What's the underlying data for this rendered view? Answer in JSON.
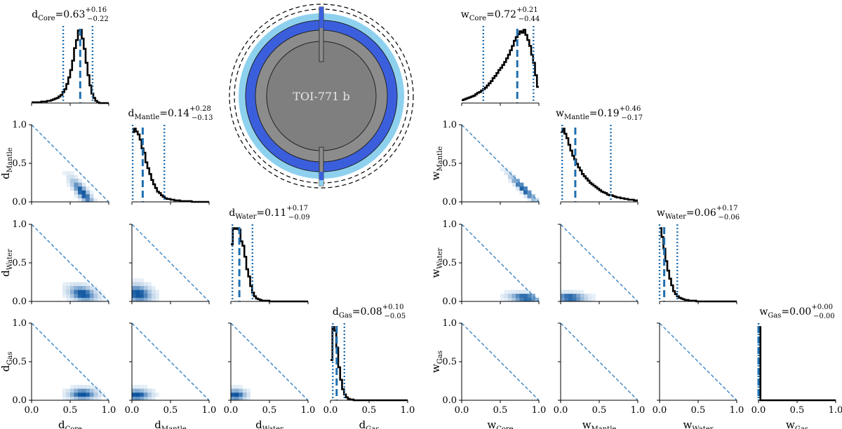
{
  "figure": {
    "planet_name": "TOI-771 b",
    "tick_labels": [
      "0.0",
      "0.5",
      "1.0"
    ],
    "colors": {
      "hist_line": "#000000",
      "median_line": "#1f6fb0",
      "ci_line": "#1f6fb0",
      "diag_line": "#3a84c4",
      "density_light": "#c6dbef",
      "density_dark": "#08519c",
      "core": "#7f7f7f",
      "mantle": "#8c8c8c",
      "water": "#3b5fdc",
      "gas": "#8ed1ee",
      "planet_text": "#e6e6e6"
    },
    "planet_layers": [
      "core",
      "mantle",
      "water",
      "gas"
    ]
  },
  "chart_data": [
    {
      "type": "corner",
      "prefix": "d",
      "variables": [
        "Core",
        "Mantle",
        "Water",
        "Gas"
      ],
      "xlim": [
        0,
        1
      ],
      "ylim": [
        0,
        1
      ],
      "stats": [
        {
          "var": "Core",
          "median": "0.63",
          "plus": "+0.16",
          "minus": "−0.22",
          "median_value": 0.63,
          "lo": 0.41,
          "hi": 0.79
        },
        {
          "var": "Mantle",
          "median": "0.14",
          "plus": "+0.28",
          "minus": "−0.13",
          "median_value": 0.14,
          "lo": 0.01,
          "hi": 0.42
        },
        {
          "var": "Water",
          "median": "0.11",
          "plus": "+0.17",
          "minus": "−0.09",
          "median_value": 0.11,
          "lo": 0.02,
          "hi": 0.28
        },
        {
          "var": "Gas",
          "median": "0.08",
          "plus": "+0.10",
          "minus": "−0.05",
          "median_value": 0.08,
          "lo": 0.03,
          "hi": 0.18
        }
      ],
      "histograms": [
        {
          "var": "Core",
          "bins": [
            0.0,
            0.025,
            0.05,
            0.075,
            0.1,
            0.125,
            0.15,
            0.175,
            0.2,
            0.225,
            0.25,
            0.275,
            0.3,
            0.325,
            0.35,
            0.375,
            0.4,
            0.425,
            0.45,
            0.475,
            0.5,
            0.525,
            0.55,
            0.575,
            0.6,
            0.625,
            0.65,
            0.675,
            0.7,
            0.725,
            0.75,
            0.775,
            0.8,
            0.825,
            0.85,
            0.875,
            0.9,
            0.925,
            0.95,
            0.975
          ],
          "counts": [
            0.01,
            0.01,
            0.01,
            0.01,
            0.01,
            0.02,
            0.02,
            0.02,
            0.03,
            0.03,
            0.04,
            0.05,
            0.06,
            0.07,
            0.09,
            0.11,
            0.15,
            0.19,
            0.26,
            0.35,
            0.45,
            0.58,
            0.75,
            0.86,
            0.99,
            1.0,
            0.88,
            0.74,
            0.55,
            0.38,
            0.24,
            0.13,
            0.07,
            0.03,
            0.01,
            0.0,
            0.0,
            0.0,
            0.0,
            0.0
          ]
        },
        {
          "var": "Mantle",
          "bins": [
            0.0,
            0.025,
            0.05,
            0.075,
            0.1,
            0.125,
            0.15,
            0.175,
            0.2,
            0.225,
            0.25,
            0.275,
            0.3,
            0.325,
            0.35,
            0.375,
            0.4,
            0.425,
            0.45,
            0.475,
            0.5,
            0.525,
            0.55,
            0.575,
            0.6,
            0.625,
            0.65,
            0.675,
            0.7,
            0.725,
            0.75,
            0.775,
            0.8,
            0.825,
            0.85,
            0.875,
            0.9,
            0.925,
            0.95,
            0.975
          ],
          "counts": [
            0.95,
            1.0,
            0.96,
            0.92,
            0.85,
            0.73,
            0.67,
            0.54,
            0.46,
            0.38,
            0.3,
            0.24,
            0.19,
            0.14,
            0.12,
            0.09,
            0.07,
            0.05,
            0.04,
            0.04,
            0.03,
            0.03,
            0.02,
            0.02,
            0.02,
            0.01,
            0.01,
            0.01,
            0.01,
            0.01,
            0.01,
            0.0,
            0.0,
            0.0,
            0.0,
            0.0,
            0.0,
            0.0,
            0.0,
            0.0
          ]
        },
        {
          "var": "Water",
          "bins": [
            0.0,
            0.025,
            0.05,
            0.075,
            0.1,
            0.125,
            0.15,
            0.175,
            0.2,
            0.225,
            0.25,
            0.275,
            0.3,
            0.325,
            0.35,
            0.375,
            0.4,
            0.425,
            0.45,
            0.475,
            0.5,
            0.525,
            0.55,
            0.575,
            0.6,
            0.625,
            0.65,
            0.675,
            0.7,
            0.725,
            0.75,
            0.775,
            0.8,
            0.825,
            0.85,
            0.875,
            0.9,
            0.925,
            0.95,
            0.975
          ],
          "counts": [
            0.78,
            1.0,
            0.99,
            1.0,
            0.98,
            0.82,
            0.76,
            0.61,
            0.44,
            0.34,
            0.21,
            0.12,
            0.07,
            0.04,
            0.03,
            0.02,
            0.01,
            0.01,
            0.01,
            0.01,
            0.0,
            0.0,
            0.0,
            0.0,
            0.0,
            0.0,
            0.0,
            0.0,
            0.0,
            0.0,
            0.0,
            0.0,
            0.0,
            0.0,
            0.0,
            0.0,
            0.0,
            0.0,
            0.0,
            0.0
          ]
        },
        {
          "var": "Gas",
          "bins": [
            0.0,
            0.025,
            0.05,
            0.075,
            0.1,
            0.125,
            0.15,
            0.175,
            0.2,
            0.225,
            0.25,
            0.275,
            0.3,
            0.325,
            0.35,
            0.375,
            0.4,
            0.425,
            0.45,
            0.475,
            0.5,
            0.525,
            0.55,
            0.575,
            0.6,
            0.625,
            0.65,
            0.675,
            0.7,
            0.725,
            0.75,
            0.775,
            0.8,
            0.825,
            0.85,
            0.875,
            0.9,
            0.925,
            0.95,
            0.975
          ],
          "counts": [
            0.55,
            1.0,
            0.95,
            0.72,
            0.45,
            0.28,
            0.15,
            0.08,
            0.04,
            0.02,
            0.01,
            0.01,
            0.0,
            0.0,
            0.0,
            0.0,
            0.0,
            0.0,
            0.0,
            0.0,
            0.0,
            0.0,
            0.0,
            0.0,
            0.0,
            0.0,
            0.0,
            0.0,
            0.0,
            0.0,
            0.0,
            0.0,
            0.0,
            0.0,
            0.0,
            0.0,
            0.0,
            0.0,
            0.0,
            0.0
          ]
        }
      ],
      "densities": [
        {
          "x": "Core",
          "y": "Mantle",
          "center": [
            0.66,
            0.12
          ],
          "spread": [
            0.1,
            0.12
          ],
          "corr": -0.85,
          "diagonal": true
        },
        {
          "x": "Core",
          "y": "Water",
          "center": [
            0.66,
            0.1
          ],
          "spread": [
            0.12,
            0.07
          ],
          "corr": -0.3,
          "diagonal": true
        },
        {
          "x": "Mantle",
          "y": "Water",
          "center": [
            0.08,
            0.1
          ],
          "spread": [
            0.12,
            0.08
          ],
          "corr": -0.2,
          "diagonal": true
        },
        {
          "x": "Core",
          "y": "Gas",
          "center": [
            0.66,
            0.08
          ],
          "spread": [
            0.12,
            0.05
          ],
          "corr": 0.0,
          "diagonal": true
        },
        {
          "x": "Mantle",
          "y": "Gas",
          "center": [
            0.06,
            0.07
          ],
          "spread": [
            0.12,
            0.05
          ],
          "corr": 0.0,
          "diagonal": true
        },
        {
          "x": "Water",
          "y": "Gas",
          "center": [
            0.06,
            0.07
          ],
          "spread": [
            0.09,
            0.05
          ],
          "corr": 0.0,
          "diagonal": true
        }
      ]
    },
    {
      "type": "corner",
      "prefix": "w",
      "variables": [
        "Core",
        "Mantle",
        "Water",
        "Gas"
      ],
      "xlim": [
        0,
        1
      ],
      "ylim": [
        0,
        1
      ],
      "stats": [
        {
          "var": "Core",
          "median": "0.72",
          "plus": "+0.21",
          "minus": "−0.44",
          "median_value": 0.72,
          "lo": 0.28,
          "hi": 0.93
        },
        {
          "var": "Mantle",
          "median": "0.19",
          "plus": "+0.46",
          "minus": "−0.17",
          "median_value": 0.19,
          "lo": 0.02,
          "hi": 0.65
        },
        {
          "var": "Water",
          "median": "0.06",
          "plus": "+0.17",
          "minus": "−0.06",
          "median_value": 0.06,
          "lo": 0.0,
          "hi": 0.23
        },
        {
          "var": "Gas",
          "median": "0.00",
          "plus": "+0.00",
          "minus": "−0.00",
          "median_value": 0.0,
          "lo": 0.0,
          "hi": 0.0
        }
      ],
      "histograms": [
        {
          "var": "Core",
          "bins": [
            0.0,
            0.025,
            0.05,
            0.075,
            0.1,
            0.125,
            0.15,
            0.175,
            0.2,
            0.225,
            0.25,
            0.275,
            0.3,
            0.325,
            0.35,
            0.375,
            0.4,
            0.425,
            0.45,
            0.475,
            0.5,
            0.525,
            0.55,
            0.575,
            0.6,
            0.625,
            0.65,
            0.675,
            0.7,
            0.725,
            0.75,
            0.775,
            0.8,
            0.825,
            0.85,
            0.875,
            0.9,
            0.925,
            0.95,
            0.975
          ],
          "counts": [
            0.04,
            0.05,
            0.06,
            0.07,
            0.08,
            0.09,
            0.1,
            0.12,
            0.14,
            0.15,
            0.17,
            0.19,
            0.21,
            0.24,
            0.27,
            0.3,
            0.34,
            0.37,
            0.41,
            0.45,
            0.48,
            0.52,
            0.56,
            0.61,
            0.66,
            0.72,
            0.78,
            0.85,
            0.9,
            0.94,
            0.98,
            0.96,
            1.0,
            0.93,
            0.86,
            0.78,
            0.66,
            0.55,
            0.38,
            0.22
          ]
        },
        {
          "var": "Mantle",
          "bins": [
            0.0,
            0.025,
            0.05,
            0.075,
            0.1,
            0.125,
            0.15,
            0.175,
            0.2,
            0.225,
            0.25,
            0.275,
            0.3,
            0.325,
            0.35,
            0.375,
            0.4,
            0.425,
            0.45,
            0.475,
            0.5,
            0.525,
            0.55,
            0.575,
            0.6,
            0.625,
            0.65,
            0.675,
            0.7,
            0.725,
            0.75,
            0.775,
            0.8,
            0.825,
            0.85,
            0.875,
            0.9,
            0.925,
            0.95,
            0.975
          ],
          "counts": [
            0.95,
            1.0,
            0.93,
            0.87,
            0.78,
            0.7,
            0.63,
            0.58,
            0.52,
            0.47,
            0.43,
            0.38,
            0.35,
            0.32,
            0.29,
            0.26,
            0.24,
            0.22,
            0.2,
            0.18,
            0.16,
            0.14,
            0.13,
            0.12,
            0.1,
            0.09,
            0.09,
            0.08,
            0.07,
            0.06,
            0.06,
            0.05,
            0.05,
            0.04,
            0.04,
            0.03,
            0.03,
            0.03,
            0.02,
            0.02
          ]
        },
        {
          "var": "Water",
          "bins": [
            0.0,
            0.025,
            0.05,
            0.075,
            0.1,
            0.125,
            0.15,
            0.175,
            0.2,
            0.225,
            0.25,
            0.275,
            0.3,
            0.325,
            0.35,
            0.375,
            0.4,
            0.425,
            0.45,
            0.475,
            0.5,
            0.525,
            0.55,
            0.575,
            0.6,
            0.625,
            0.65,
            0.675,
            0.7,
            0.725,
            0.75,
            0.775,
            0.8,
            0.825,
            0.85,
            0.875,
            0.9,
            0.925,
            0.95,
            0.975
          ],
          "counts": [
            1.0,
            0.88,
            0.72,
            0.55,
            0.42,
            0.31,
            0.22,
            0.14,
            0.1,
            0.07,
            0.05,
            0.04,
            0.03,
            0.02,
            0.02,
            0.01,
            0.01,
            0.01,
            0.01,
            0.0,
            0.0,
            0.0,
            0.0,
            0.0,
            0.0,
            0.0,
            0.0,
            0.0,
            0.0,
            0.0,
            0.0,
            0.0,
            0.0,
            0.0,
            0.0,
            0.0,
            0.0,
            0.0,
            0.0,
            0.0
          ]
        },
        {
          "var": "Gas",
          "bins": [
            0.0,
            0.025,
            0.05,
            0.075,
            0.1,
            0.125,
            0.15,
            0.175,
            0.2,
            0.225,
            0.25,
            0.275,
            0.3,
            0.325,
            0.35,
            0.375,
            0.4,
            0.425,
            0.45,
            0.475,
            0.5,
            0.525,
            0.55,
            0.575,
            0.6,
            0.625,
            0.65,
            0.675,
            0.7,
            0.725,
            0.75,
            0.775,
            0.8,
            0.825,
            0.85,
            0.875,
            0.9,
            0.925,
            0.95,
            0.975
          ],
          "counts": [
            1.0,
            0.0,
            0.0,
            0.0,
            0.0,
            0.0,
            0.0,
            0.0,
            0.0,
            0.0,
            0.0,
            0.0,
            0.0,
            0.0,
            0.0,
            0.0,
            0.0,
            0.0,
            0.0,
            0.0,
            0.0,
            0.0,
            0.0,
            0.0,
            0.0,
            0.0,
            0.0,
            0.0,
            0.0,
            0.0,
            0.0,
            0.0,
            0.0,
            0.0,
            0.0,
            0.0,
            0.0,
            0.0,
            0.0,
            0.0
          ]
        }
      ],
      "densities": [
        {
          "x": "Core",
          "y": "Mantle",
          "center": [
            0.8,
            0.17
          ],
          "spread": [
            0.12,
            0.12
          ],
          "corr": -0.95,
          "diagonal": true
        },
        {
          "x": "Core",
          "y": "Water",
          "center": [
            0.82,
            0.05
          ],
          "spread": [
            0.14,
            0.04
          ],
          "corr": -0.2,
          "diagonal": true
        },
        {
          "x": "Mantle",
          "y": "Water",
          "center": [
            0.12,
            0.05
          ],
          "spread": [
            0.14,
            0.04
          ],
          "corr": -0.1,
          "diagonal": true
        },
        {
          "x": "Core",
          "y": "Gas",
          "center": [
            0.8,
            0.0
          ],
          "spread": [
            0.13,
            0.008
          ],
          "corr": 0.0,
          "diagonal": true
        },
        {
          "x": "Mantle",
          "y": "Gas",
          "center": [
            0.1,
            0.0
          ],
          "spread": [
            0.12,
            0.008
          ],
          "corr": 0.0,
          "diagonal": true
        },
        {
          "x": "Water",
          "y": "Gas",
          "center": [
            0.04,
            0.0
          ],
          "spread": [
            0.05,
            0.008
          ],
          "corr": 0.0,
          "diagonal": true
        }
      ]
    }
  ]
}
